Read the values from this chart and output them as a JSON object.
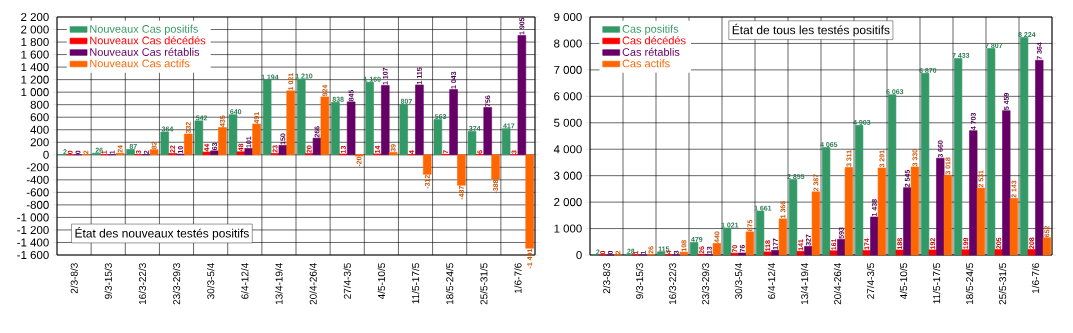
{
  "chart_data": [
    {
      "type": "bar",
      "title": "État des nouveaux testés positifs",
      "categories": [
        "2/3-8/3",
        "9/3-15/3",
        "16/3-22/3",
        "23/3-29/3",
        "30/3-5/4",
        "6/4-12/4",
        "13/4-19/4",
        "20/4-26/4",
        "27/4-3/5",
        "4/5-10/5",
        "11/5-17/5",
        "18/5-24/5",
        "25/5-31/5",
        "1/6-7/6"
      ],
      "series": [
        {
          "name": "Nouveaux Cas positifs",
          "color": "#339966",
          "values": [
            2,
            26,
            87,
            364,
            542,
            640,
            1194,
            1210,
            838,
            1160,
            807,
            563,
            374,
            417
          ],
          "value_labels": [
            "2",
            "26",
            "87",
            "364",
            "542",
            "640",
            "1 194",
            "1 210",
            "838",
            "1 160",
            "807",
            "563",
            "374",
            "417"
          ]
        },
        {
          "name": "Nouveaux Cas décédés",
          "color": "#ff0000",
          "values": [
            0,
            1,
            3,
            22,
            44,
            48,
            23,
            20,
            13,
            14,
            4,
            7,
            6,
            3
          ],
          "value_labels": [
            "0",
            "1",
            "3",
            "22",
            "44",
            "48",
            "23",
            "20",
            "13",
            "14",
            "4",
            "7",
            "6",
            "3"
          ]
        },
        {
          "name": "Nouveaux Cas rétablis",
          "color": "#660066",
          "values": [
            0,
            1,
            2,
            10,
            63,
            101,
            150,
            266,
            845,
            1107,
            1115,
            1043,
            756,
            1905
          ],
          "value_labels": [
            "0",
            "1",
            "2",
            "10",
            "63",
            "101",
            "150",
            "266",
            "845",
            "1 107",
            "1 115",
            "1 043",
            "756",
            "1 905"
          ]
        },
        {
          "name": "Nouveaux Cas actifs",
          "color": "#ff6600",
          "values": [
            2,
            24,
            82,
            332,
            435,
            491,
            1021,
            924,
            -20,
            39,
            -312,
            -487,
            -388,
            -1491
          ],
          "value_labels": [
            "2",
            "24",
            "82",
            "332",
            "435",
            "491",
            "1 021",
            "924",
            "-20",
            "39",
            "-312",
            "-487",
            "-388",
            "-1 491"
          ]
        }
      ],
      "ylim": [
        -1600,
        2200
      ],
      "yticks": [
        {
          "value": -1600,
          "label": "-1 600"
        },
        {
          "value": -1400,
          "label": "-1 400"
        },
        {
          "value": -1200,
          "label": "-1 200"
        },
        {
          "value": -1000,
          "label": "-1 000"
        },
        -800,
        -600,
        -400,
        -200,
        0,
        200,
        400,
        600,
        800,
        {
          "value": 1000,
          "label": "1 000"
        },
        {
          "value": 1200,
          "label": "1 200"
        },
        {
          "value": 1400,
          "label": "1 400"
        },
        {
          "value": 1600,
          "label": "1 600"
        },
        {
          "value": 1800,
          "label": "1 800"
        },
        {
          "value": 2000,
          "label": "2 000"
        },
        {
          "value": 2200,
          "label": "2 200"
        }
      ],
      "grid": true,
      "legend": "top left"
    },
    {
      "type": "bar",
      "title": "État de tous les testés positifs",
      "categories": [
        "2/3-8/3",
        "9/3-15/3",
        "16/3-22/3",
        "23/3-29/3",
        "30/3-5/4",
        "6/4-12/4",
        "13/4-19/4",
        "20/4-26/4",
        "27/4-3/5",
        "4/5-10/5",
        "11/5-17/5",
        "18/5-24/5",
        "25/5-31/5",
        "1/6-7/6"
      ],
      "series": [
        {
          "name": "Cas positifs",
          "color": "#339966",
          "values": [
            2,
            28,
            115,
            479,
            1021,
            1661,
            2855,
            4065,
            4903,
            6063,
            6870,
            7433,
            7807,
            8224
          ],
          "value_labels": [
            "2",
            "28",
            "115",
            "479",
            "1 021",
            "1 661",
            "2 855",
            "4 065",
            "4 903",
            "6 063",
            "6 870",
            "7 433",
            "7 807",
            "8 224"
          ]
        },
        {
          "name": "Cas décédés",
          "color": "#ff0000",
          "values": [
            0,
            1,
            4,
            26,
            70,
            118,
            141,
            161,
            174,
            188,
            192,
            199,
            205,
            208
          ],
          "value_labels": [
            "0",
            "1",
            "4",
            "26",
            "70",
            "118",
            "141",
            "161",
            "174",
            "188",
            "192",
            "199",
            "205",
            "208"
          ]
        },
        {
          "name": "Cas rétablis",
          "color": "#660066",
          "values": [
            0,
            1,
            3,
            13,
            76,
            177,
            327,
            593,
            1438,
            2545,
            3660,
            4703,
            5459,
            7364
          ],
          "value_labels": [
            "0",
            "1",
            "3",
            "13",
            "76",
            "177",
            "327",
            "593",
            "1 438",
            "2 545",
            "3 660",
            "4 703",
            "5 459",
            "7 364"
          ]
        },
        {
          "name": "Cas actifs",
          "color": "#ff6600",
          "values": [
            2,
            26,
            108,
            440,
            875,
            1366,
            2387,
            3311,
            3291,
            3330,
            3018,
            2531,
            2143,
            652
          ],
          "value_labels": [
            "2",
            "26",
            "108",
            "440",
            "875",
            "1 366",
            "2 387",
            "3 311",
            "3 291",
            "3 330",
            "3 018",
            "2 531",
            "2 143",
            "652"
          ]
        }
      ],
      "ylim": [
        0,
        9000
      ],
      "yticks": [
        0,
        {
          "value": 1000,
          "label": "1 000"
        },
        {
          "value": 2000,
          "label": "2 000"
        },
        {
          "value": 3000,
          "label": "3 000"
        },
        {
          "value": 4000,
          "label": "4 000"
        },
        {
          "value": 5000,
          "label": "5 000"
        },
        {
          "value": 6000,
          "label": "6 000"
        },
        {
          "value": 7000,
          "label": "7 000"
        },
        {
          "value": 8000,
          "label": "8 000"
        },
        {
          "value": 9000,
          "label": "9 000"
        }
      ],
      "grid": true,
      "legend": "top left"
    }
  ]
}
